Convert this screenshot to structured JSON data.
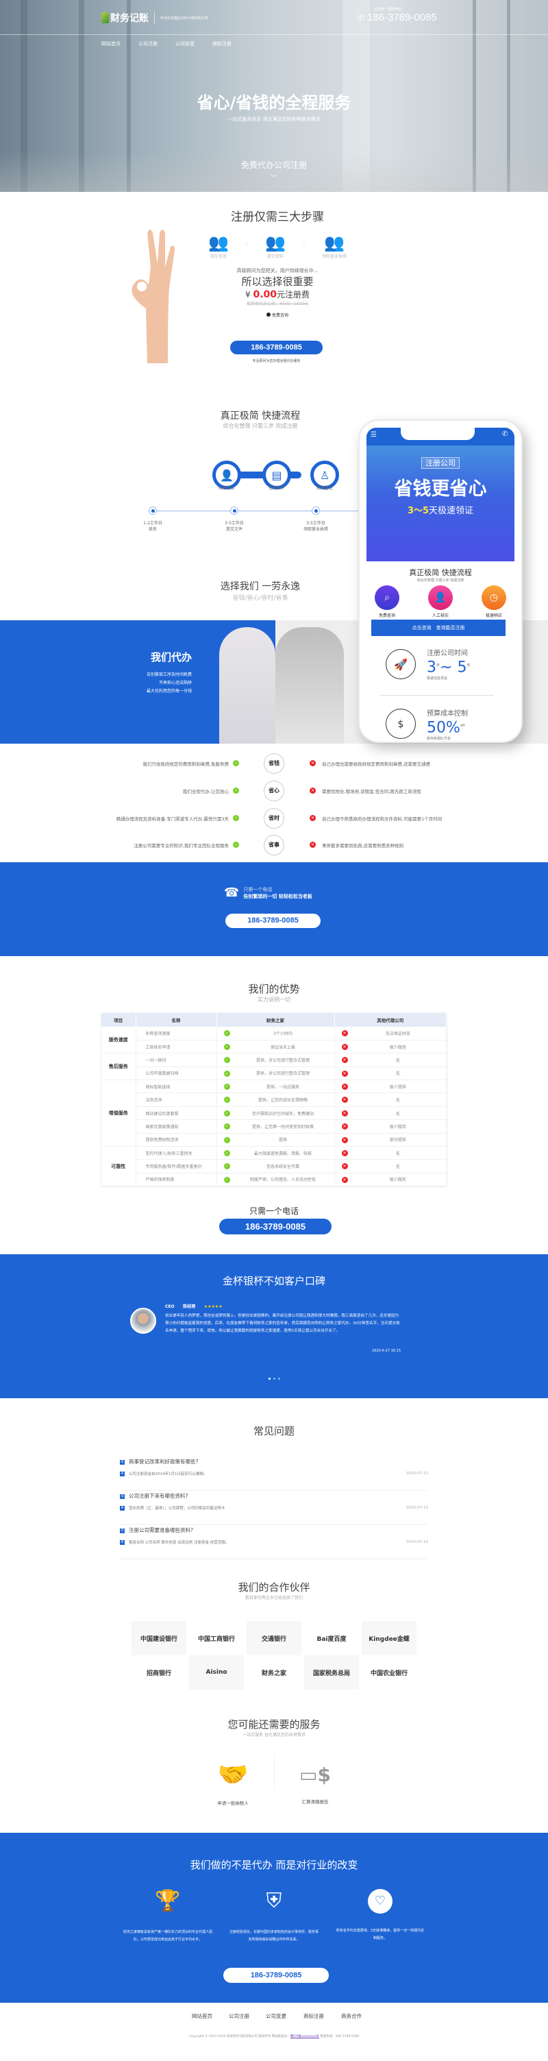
{
  "header": {
    "logo_text": "财务记账",
    "tagline": "可代办全国近300个城市的公司",
    "phone_label": "全国统一客服电话",
    "phone": "186-3789-0085",
    "nav": [
      "网站首页",
      "公司注册",
      "公司变更",
      "商标注册"
    ]
  },
  "hero": {
    "title": "省心/省钱的全程服务",
    "subtitle": "一站式服务体系 保证满足您的各种服务需求",
    "cta": "免费代办公司注册"
  },
  "steps": {
    "title": "注册仅需三大步骤",
    "items": [
      "核实信息",
      "提交资料",
      "领取营业执照"
    ],
    "advisor_text": "高级顾问为您把关，用户持续增长中...",
    "choose_text": "所以选择很重要",
    "currency": "¥",
    "price": "0.00",
    "price_suffix": "元注册费",
    "compare_price": "找其他代办公司---¥500~1500元",
    "free_consult": "免费咨询",
    "phone": "186-3789-0085",
    "note": "专业顾问为您办理全程代办服务"
  },
  "flow": {
    "title": "真正极简 快捷流程",
    "subtitle": "综合化管理 只需三步 完成注册",
    "icons": [
      "核名设立",
      "签约文件",
      "税务登记"
    ],
    "timeline": [
      {
        "days": "1-2工作日",
        "label": "核名"
      },
      {
        "days": "3-5工作日",
        "label": "提交文件"
      },
      {
        "days": "3-5工作日",
        "label": "领取营业执照"
      }
    ]
  },
  "choose": {
    "title": "选择我们 一劳永逸",
    "subtitle": "省钱/省心/省时/省事"
  },
  "phone_mock": {
    "tag": "注册公司",
    "headline": "省钱更省心",
    "days": "3～5",
    "days_suffix": "天极速领证",
    "flow_title": "真正极简 快捷流程",
    "flow_sub": "综合化管理 只需三步 完成注册",
    "features": [
      "免费查询",
      "人工核实",
      "极速响应"
    ],
    "button": "点击咨询　查询能否注册",
    "stat1_title": "注册公司时间",
    "stat1_value_a": "3",
    "stat1_value_b": "5",
    "stat1_unit": "天",
    "stat1_sep": "~",
    "stat1_note": "极速加急领证",
    "stat2_title": "预算成本控制",
    "stat2_value": "50%",
    "stat2_unit": "off",
    "stat2_note": "和传统相比节省"
  },
  "banner_we": {
    "title": "我们代办",
    "lines": [
      "告别繁琐工序及时间耗费",
      "不再担心违法陷阱",
      "最大化利用您的每一分钱"
    ]
  },
  "compare": [
    {
      "ours": "我们只收政府规定的费用和刻章费,免服务费",
      "badge": "省钱",
      "theirs": "自己办理也需要收政府规定费用和刻章费,还需要交通费"
    },
    {
      "ours": "我们全程代办,让您放心",
      "badge": "省心",
      "theirs": "需要找地址,租场地,谈租金,签合同,再去跑工商流程"
    },
    {
      "ours": "精通办理流程及资料准备,专门渠道专人代办,最快只需3天",
      "badge": "省时",
      "theirs": "自己办理不熟悉政府办理流程和文件资料,可能需要1个月时间"
    },
    {
      "ours": "注册公司需要专业的知识,我们专业团队全程服务",
      "badge": "省事",
      "theirs": "事务繁多需要到处跑,还需要熟悉各种规则"
    }
  ],
  "call_banner": {
    "line1": "只需一个电话",
    "line2": "告别繁琐的一切 轻轻松松当老板",
    "phone": "186-3789-0085"
  },
  "advantages": {
    "title": "我们的优势",
    "subtitle": "实力说明一切",
    "headers": [
      "项目",
      "名称",
      "财务之家",
      "其他代理公司"
    ],
    "groups": [
      {
        "name": "服务速度",
        "rows": [
          [
            "名称查询速度",
            "3个小时内",
            "无法保证时效"
          ],
          [
            "工商核名申请",
            "保证当天上报",
            "极少做到"
          ]
        ]
      },
      {
        "name": "售后服务",
        "rows": [
          [
            "一对一顾问",
            "提供，对公司进行整合式管理",
            "无"
          ],
          [
            "公司年度数据归档",
            "提供，对公司进行整合式管理",
            "无"
          ]
        ]
      },
      {
        "name": "增值服务",
        "rows": [
          [
            "商标智能选择",
            "提供，一站式服务",
            "极少提供"
          ],
          [
            "法务咨询",
            "提供，让您的成长走得顺畅",
            "无"
          ],
          [
            "网站建设优惠套餐",
            "您只需购买好空间域名，免费建站",
            "无"
          ],
          [
            "国家优惠政策通知",
            "提供，让您第一时间享受到好政策",
            "极少做到"
          ],
          [
            "提供免费财税咨询",
            "提供",
            "部分提供"
          ]
        ]
      },
      {
        "name": "可靠性",
        "rows": [
          [
            "签约代理人/财务三重把关",
            "最大限度避免漏报、错报、败报",
            "无"
          ],
          [
            "专用服务器/软件/数据多重备份",
            "信息系统安全可靠",
            "无"
          ],
          [
            "严格的保密制度",
            "制度严密、公司理念、人员流动性低",
            "极少做到"
          ]
        ]
      }
    ],
    "call_label": "只需一个电话",
    "phone": "186-3789-0085"
  },
  "testimonials": {
    "title": "金杯银杯不如客户口碑",
    "role": "CEO",
    "name": "陈经理",
    "stars": "★★★★★",
    "text": "创业是年轻人的梦想，我也在追梦的路上。但是创业是困难的，离开前注册公司就让我遇到很大的难题。跑工商局咨询了几次，还总是因为很小的问题拖延着我的进度。后来，在朋友推荐下看到财务之家的宣传单，然后就顺其自然的让财务之家代办。30分钟查名字，当天提交核名申请，整个程序下来，很快。所以最让我佩服的就是财务之家速度，居然5天就让我公司合法开业了。",
    "date": "2020-6-27 16:15",
    "slides": 3,
    "active_slide": 1
  },
  "faq": {
    "title": "常见问题",
    "items": [
      {
        "q": "商事登记改革利好政策有哪些?",
        "a": "公司注册资金自2014年1月1日起实行认缴制。",
        "date": "2020-07-10"
      },
      {
        "q": "公司注册下来有哪些资料?",
        "a": "营业执照（正、副本）；公司章程；公司印章及印鉴证明卡",
        "date": "2020-07-10"
      },
      {
        "q": "注册公司需要准备哪些资料?",
        "a": "租赁合同 公司名称 股东信息 出资比例 注册资金 经营范围。",
        "date": "2020-07-10"
      }
    ]
  },
  "partners": {
    "title": "我们的合作伙伴",
    "subtitle": "数百家优秀企业已经选择了我们",
    "logos": [
      "中国建设银行",
      "中国工商银行",
      "交通银行",
      "Bai度百度",
      "Kingdee金蝶",
      "招商银行",
      "Aisino",
      "财务之家",
      "国家税务总局",
      "中国农业银行"
    ]
  },
  "services": {
    "title": "您可能还需要的服务",
    "subtitle": "一站式服务 旨在满足您的各项需求",
    "items": [
      {
        "icon": "handshake-icon",
        "label": "申请一般纳税人"
      },
      {
        "icon": "card-dollar-icon",
        "label": "汇算清缴报告"
      }
    ]
  },
  "mission": {
    "title": "我们做的不是代办 而是对行业的改变",
    "items": [
      {
        "icon": "trophy-icon",
        "text": "财务之家拥有具有资产第一梯队实力的顶尖的专业代理人团队，公司规范成功率远远高于行业平均水平。"
      },
      {
        "icon": "shield-icon",
        "text": "注册经验领先，长期与国内多家知名的会计事务所、税务事务所保持良好战略合作伙伴关系。"
      },
      {
        "icon": "heart-icon",
        "text": "所有名字均无需费用，3天就准确读，提供一对一的顾问定制服务。"
      }
    ],
    "phone": "186-3789-0085"
  },
  "footer": {
    "nav": [
      "网站首页",
      "公司注册",
      "公司变更",
      "商标注册",
      "商务合作"
    ],
    "copyright": "Copyright © 2003-2020 某某财务记账有限公司 版权所有 网站备案号：",
    "icp": "豫ICP备xxxxxxxx号",
    "hotline": " 客服热线：186-3789-0085"
  },
  "colors": {
    "brand_blue": "#1e64d4",
    "price_red": "#e8232b",
    "check_green": "#7ccf2a"
  }
}
